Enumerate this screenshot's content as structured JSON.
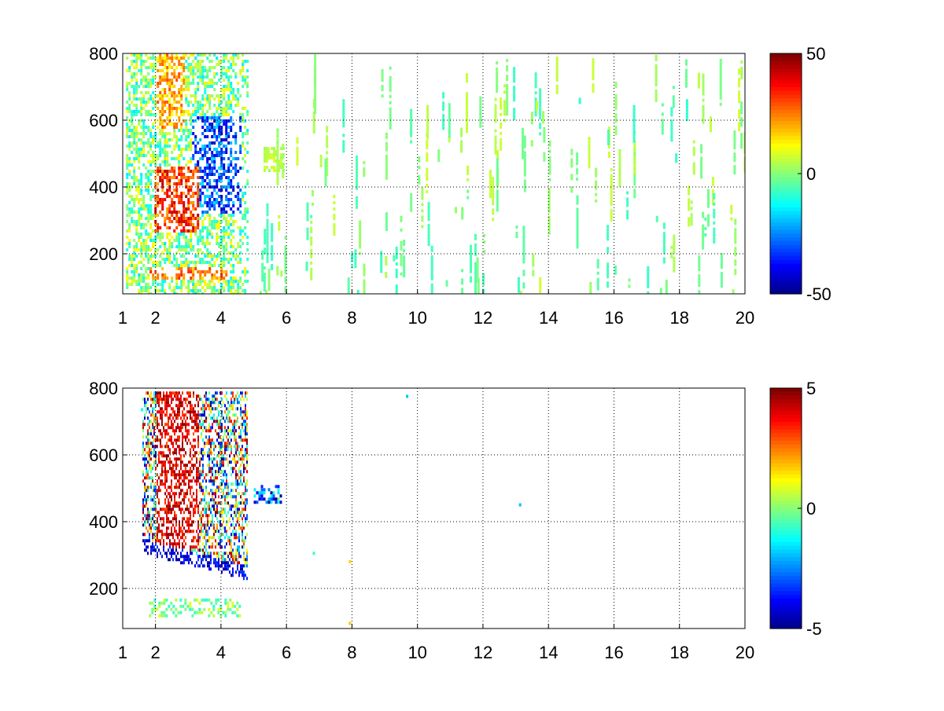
{
  "chart_data": [
    {
      "type": "heatmap",
      "title": "",
      "xlabel": "",
      "ylabel": "",
      "xlim": [
        1,
        20
      ],
      "ylim": [
        80,
        800
      ],
      "x_ticks": [
        "1",
        "2",
        "4",
        "6",
        "8",
        "10",
        "12",
        "14",
        "16",
        "18",
        "20"
      ],
      "x_tick_values": [
        1,
        2,
        4,
        6,
        8,
        10,
        12,
        14,
        16,
        18,
        20
      ],
      "y_ticks": [
        "200",
        "400",
        "600",
        "800"
      ],
      "y_tick_values": [
        200,
        400,
        600,
        800
      ],
      "grid": true,
      "colormap": "jet",
      "clim": [
        -50,
        50
      ],
      "colorbar_ticks": [
        "50",
        "0",
        "-50"
      ],
      "colorbar_tick_values": [
        50,
        0,
        -50
      ],
      "regions": [
        {
          "x": [
            1.1,
            4.8
          ],
          "y": [
            80,
            800
          ],
          "description": "dense high-variance field"
        },
        {
          "x": [
            1.9,
            3.3
          ],
          "y": [
            280,
            460
          ],
          "value_range": [
            20,
            45
          ]
        },
        {
          "x": [
            3.1,
            4.6
          ],
          "y": [
            330,
            620
          ],
          "value_range": [
            -45,
            -15
          ]
        },
        {
          "x": [
            2.0,
            2.9
          ],
          "y": [
            600,
            800
          ],
          "value_range": [
            10,
            30
          ]
        },
        {
          "x": [
            1.8,
            4.2
          ],
          "y": [
            130,
            160
          ],
          "value_range": [
            15,
            35
          ]
        },
        {
          "x": [
            5.3,
            5.9
          ],
          "y": [
            450,
            520
          ],
          "value_range": [
            2,
            10
          ]
        },
        {
          "x": [
            5.0,
            20.0
          ],
          "y": [
            80,
            800
          ],
          "description": "sparse near-zero vertical streaks",
          "value_range": [
            -8,
            8
          ]
        }
      ]
    },
    {
      "type": "heatmap",
      "title": "",
      "xlabel": "",
      "ylabel": "",
      "xlim": [
        1,
        20
      ],
      "ylim": [
        80,
        800
      ],
      "x_ticks": [
        "1",
        "2",
        "4",
        "6",
        "8",
        "10",
        "12",
        "14",
        "16",
        "18",
        "20"
      ],
      "x_tick_values": [
        1,
        2,
        4,
        6,
        8,
        10,
        12,
        14,
        16,
        18,
        20
      ],
      "y_ticks": [
        "200",
        "400",
        "600",
        "800"
      ],
      "y_tick_values": [
        200,
        400,
        600,
        800
      ],
      "grid": true,
      "colormap": "jet",
      "clim": [
        -5,
        5
      ],
      "colorbar_ticks": [
        "5",
        "0",
        "-5"
      ],
      "colorbar_tick_values": [
        5,
        0,
        -5
      ],
      "regions": [
        {
          "x": [
            1.6,
            4.8
          ],
          "y": [
            230,
            790
          ],
          "description": "curved banded streaks",
          "value_range": [
            -5,
            5
          ]
        },
        {
          "x": [
            2.0,
            3.3
          ],
          "y": [
            300,
            790
          ],
          "value_range": [
            3,
            5
          ]
        },
        {
          "x": [
            1.9,
            3.5
          ],
          "y": [
            280,
            330
          ],
          "value_range": [
            -5,
            -3
          ]
        },
        {
          "x": [
            3.6,
            4.8
          ],
          "y": [
            350,
            620
          ],
          "value_range": [
            -5,
            5
          ]
        },
        {
          "x": [
            1.8,
            4.6
          ],
          "y": [
            120,
            170
          ],
          "value_range": [
            -1,
            1
          ]
        },
        {
          "x": [
            5.0,
            5.8
          ],
          "y": [
            460,
            510
          ],
          "value_range": [
            -5,
            0
          ]
        }
      ],
      "isolated_points": [
        {
          "x": 9.65,
          "y": 780
        },
        {
          "x": 13.1,
          "y": 455
        },
        {
          "x": 6.8,
          "y": 310
        },
        {
          "x": 7.9,
          "y": 285
        },
        {
          "x": 7.9,
          "y": 100
        },
        {
          "x": 1.55,
          "y": 740
        }
      ]
    }
  ]
}
